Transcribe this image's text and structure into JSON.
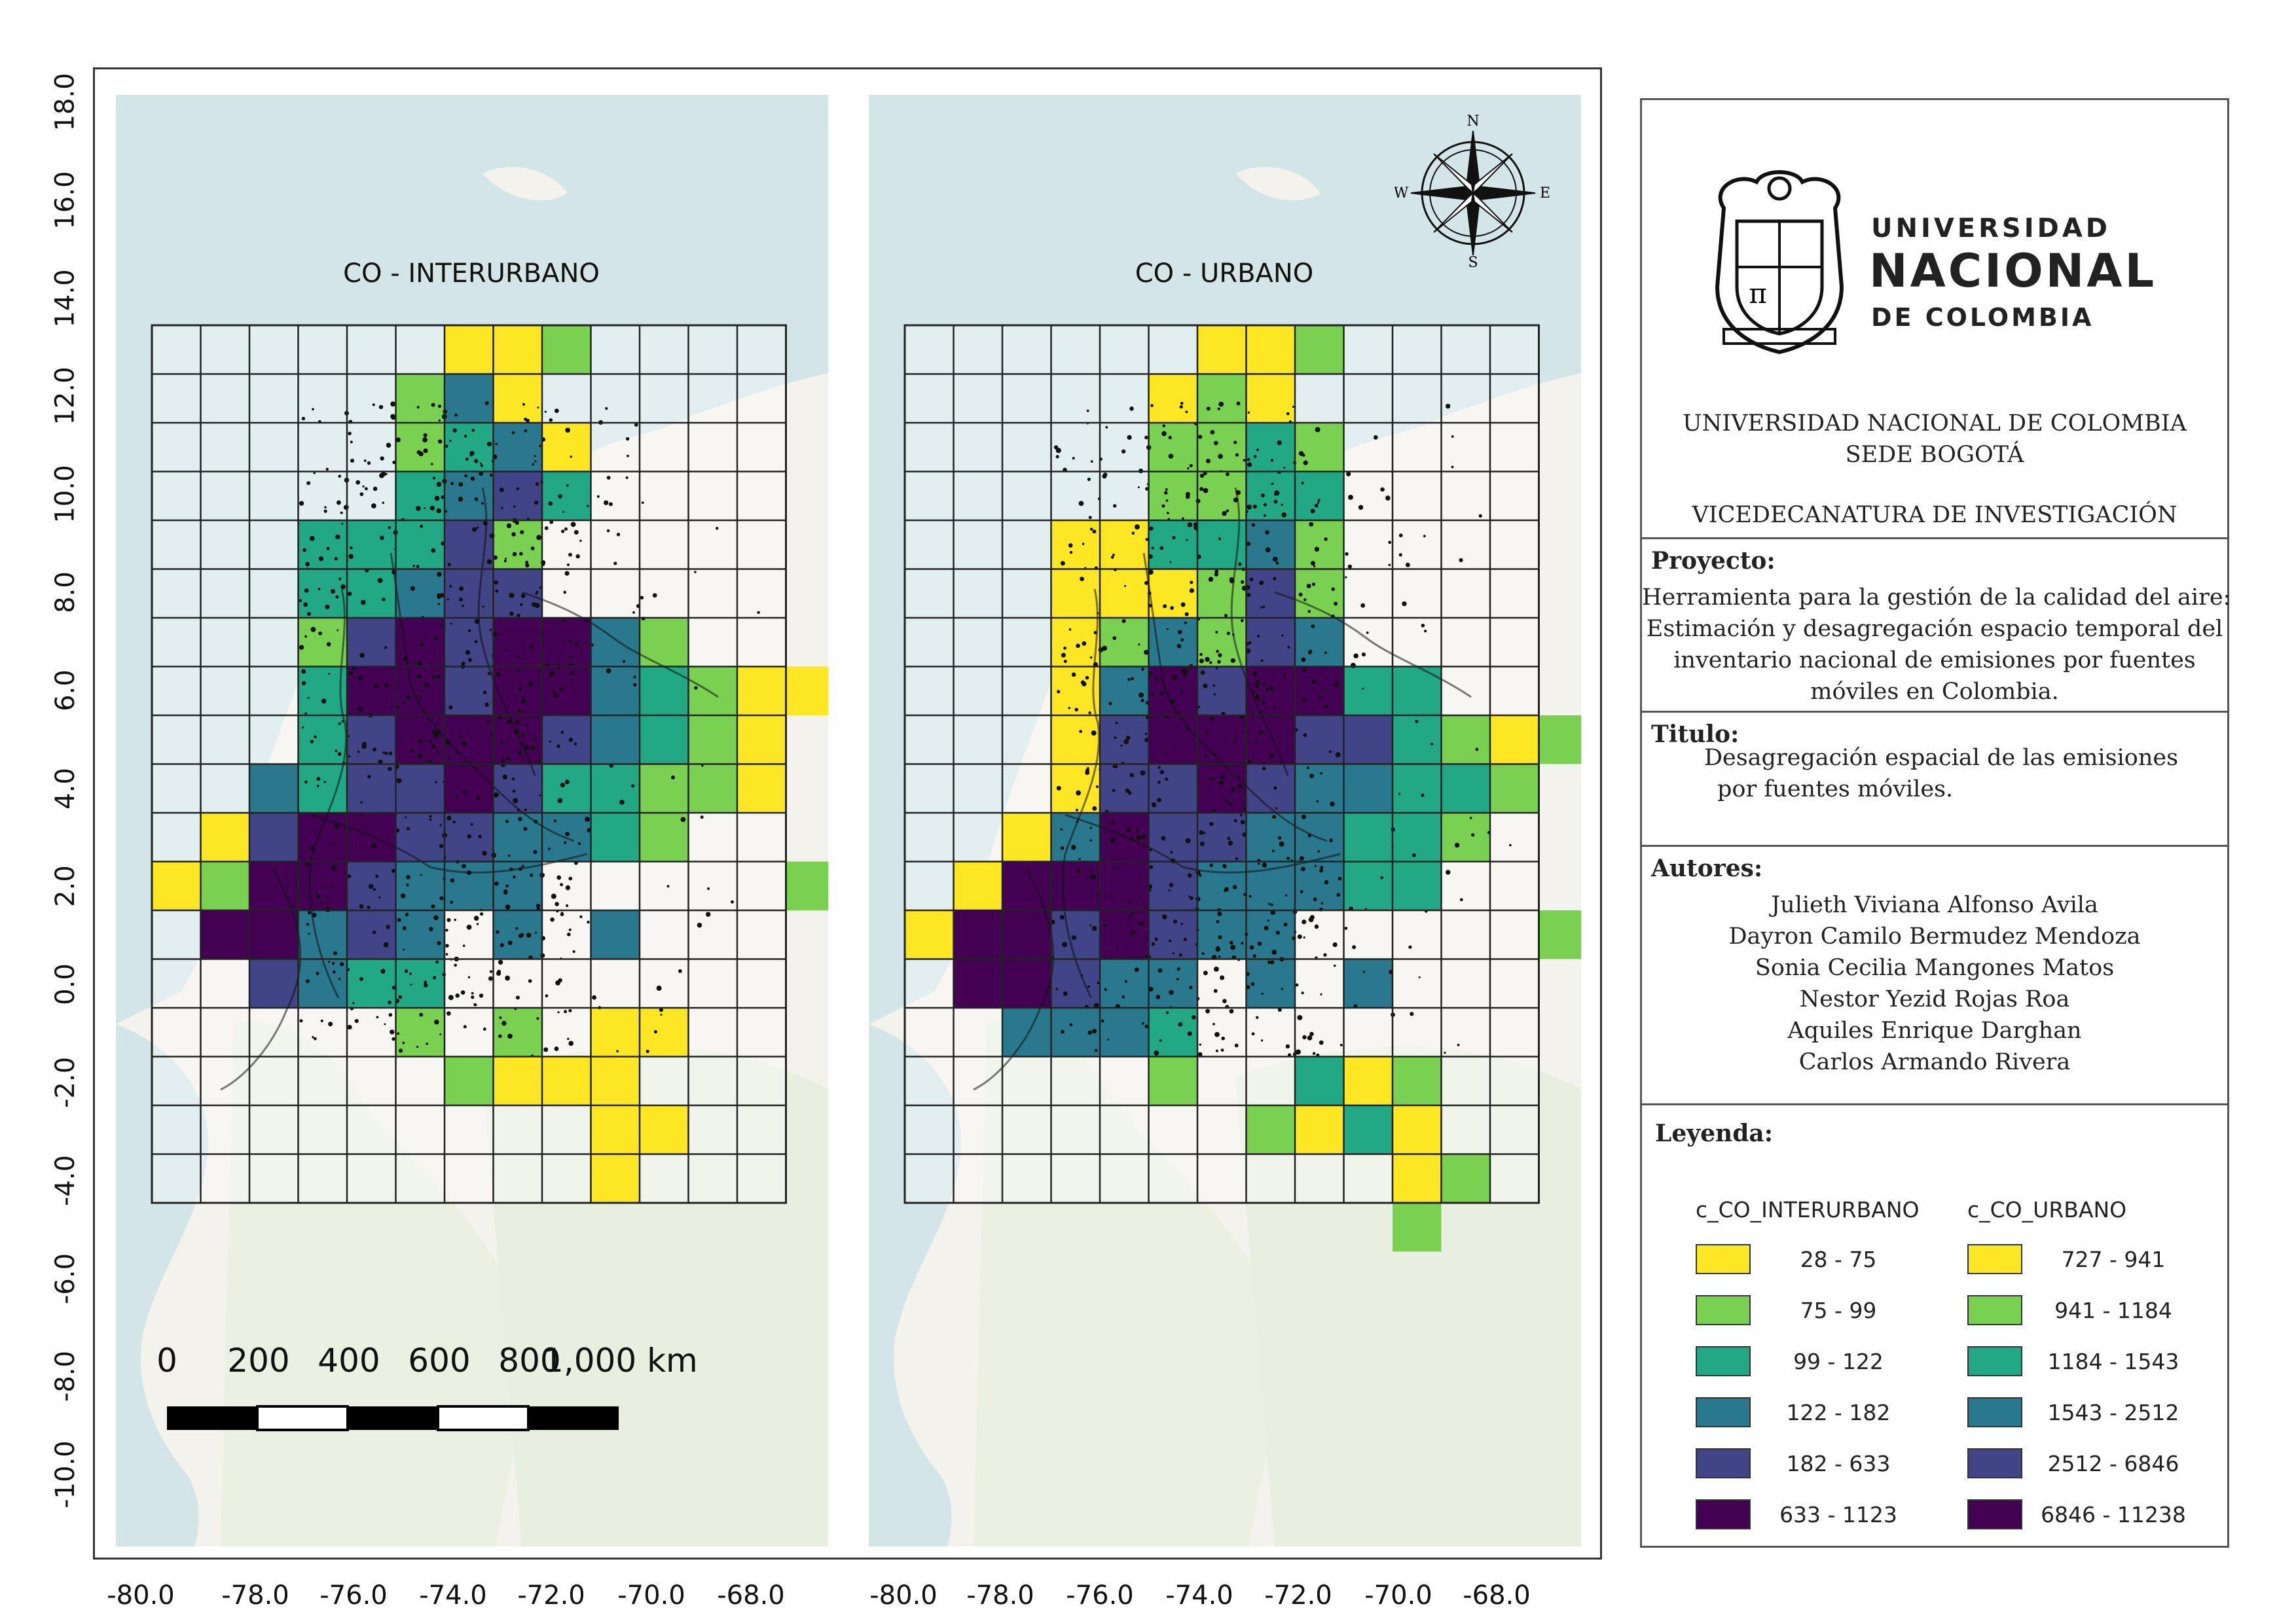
{
  "maps": [
    {
      "id": "interurbano",
      "title": "CO - INTERURBANO",
      "cells": [
        [
          0,
          6,
          0
        ],
        [
          0,
          7,
          0
        ],
        [
          0,
          8,
          1
        ],
        [
          1,
          5,
          1
        ],
        [
          1,
          6,
          3
        ],
        [
          1,
          7,
          0
        ],
        [
          2,
          5,
          1
        ],
        [
          2,
          6,
          2
        ],
        [
          2,
          7,
          3
        ],
        [
          2,
          8,
          0
        ],
        [
          3,
          5,
          2
        ],
        [
          3,
          6,
          3
        ],
        [
          3,
          7,
          4
        ],
        [
          3,
          8,
          2
        ],
        [
          4,
          3,
          2
        ],
        [
          4,
          4,
          2
        ],
        [
          4,
          5,
          2
        ],
        [
          4,
          6,
          4
        ],
        [
          4,
          7,
          1
        ],
        [
          5,
          3,
          2
        ],
        [
          5,
          4,
          2
        ],
        [
          5,
          5,
          3
        ],
        [
          5,
          6,
          4
        ],
        [
          5,
          7,
          4
        ],
        [
          6,
          3,
          1
        ],
        [
          6,
          4,
          4
        ],
        [
          6,
          5,
          5
        ],
        [
          6,
          6,
          4
        ],
        [
          6,
          7,
          5
        ],
        [
          6,
          8,
          5
        ],
        [
          6,
          9,
          3
        ],
        [
          6,
          10,
          1
        ],
        [
          7,
          3,
          2
        ],
        [
          7,
          4,
          5
        ],
        [
          7,
          5,
          5
        ],
        [
          7,
          6,
          4
        ],
        [
          7,
          7,
          5
        ],
        [
          7,
          8,
          5
        ],
        [
          7,
          9,
          3
        ],
        [
          7,
          10,
          2
        ],
        [
          7,
          11,
          1
        ],
        [
          7,
          12,
          0
        ],
        [
          7,
          13,
          0
        ],
        [
          8,
          3,
          2
        ],
        [
          8,
          4,
          4
        ],
        [
          8,
          5,
          5
        ],
        [
          8,
          6,
          5
        ],
        [
          8,
          7,
          5
        ],
        [
          8,
          8,
          4
        ],
        [
          8,
          9,
          3
        ],
        [
          8,
          10,
          2
        ],
        [
          8,
          11,
          1
        ],
        [
          8,
          12,
          0
        ],
        [
          9,
          2,
          3
        ],
        [
          9,
          3,
          2
        ],
        [
          9,
          4,
          4
        ],
        [
          9,
          5,
          4
        ],
        [
          9,
          6,
          5
        ],
        [
          9,
          7,
          4
        ],
        [
          9,
          8,
          2
        ],
        [
          9,
          9,
          2
        ],
        [
          9,
          10,
          1
        ],
        [
          9,
          11,
          1
        ],
        [
          9,
          12,
          0
        ],
        [
          10,
          1,
          0
        ],
        [
          10,
          2,
          4
        ],
        [
          10,
          3,
          5
        ],
        [
          10,
          4,
          5
        ],
        [
          10,
          5,
          4
        ],
        [
          10,
          6,
          4
        ],
        [
          10,
          7,
          3
        ],
        [
          10,
          8,
          3
        ],
        [
          10,
          9,
          2
        ],
        [
          10,
          10,
          1
        ],
        [
          11,
          0,
          0
        ],
        [
          11,
          1,
          1
        ],
        [
          11,
          2,
          5
        ],
        [
          11,
          3,
          5
        ],
        [
          11,
          4,
          4
        ],
        [
          11,
          5,
          3
        ],
        [
          11,
          6,
          3
        ],
        [
          11,
          7,
          3
        ],
        [
          11,
          13,
          1
        ],
        [
          12,
          1,
          5
        ],
        [
          12,
          2,
          5
        ],
        [
          12,
          3,
          3
        ],
        [
          12,
          4,
          4
        ],
        [
          12,
          5,
          3
        ],
        [
          12,
          7,
          3
        ],
        [
          12,
          9,
          3
        ],
        [
          13,
          2,
          4
        ],
        [
          13,
          3,
          3
        ],
        [
          13,
          4,
          2
        ],
        [
          13,
          5,
          2
        ],
        [
          14,
          5,
          1
        ],
        [
          14,
          7,
          1
        ],
        [
          14,
          9,
          0
        ],
        [
          14,
          10,
          0
        ],
        [
          15,
          6,
          1
        ],
        [
          15,
          7,
          0
        ],
        [
          15,
          8,
          0
        ],
        [
          15,
          9,
          0
        ],
        [
          16,
          9,
          0
        ],
        [
          16,
          10,
          0
        ],
        [
          17,
          9,
          0
        ]
      ]
    },
    {
      "id": "urbano",
      "title": "CO - URBANO",
      "cells": [
        [
          0,
          6,
          0
        ],
        [
          0,
          7,
          0
        ],
        [
          0,
          8,
          1
        ],
        [
          1,
          5,
          0
        ],
        [
          1,
          6,
          1
        ],
        [
          1,
          7,
          0
        ],
        [
          2,
          5,
          1
        ],
        [
          2,
          6,
          1
        ],
        [
          2,
          7,
          2
        ],
        [
          2,
          8,
          1
        ],
        [
          3,
          5,
          1
        ],
        [
          3,
          6,
          1
        ],
        [
          3,
          7,
          2
        ],
        [
          3,
          8,
          2
        ],
        [
          4,
          3,
          0
        ],
        [
          4,
          4,
          0
        ],
        [
          4,
          5,
          2
        ],
        [
          4,
          6,
          2
        ],
        [
          4,
          7,
          3
        ],
        [
          4,
          8,
          1
        ],
        [
          5,
          3,
          0
        ],
        [
          5,
          4,
          0
        ],
        [
          5,
          5,
          0
        ],
        [
          5,
          6,
          1
        ],
        [
          5,
          7,
          4
        ],
        [
          5,
          8,
          1
        ],
        [
          6,
          3,
          0
        ],
        [
          6,
          4,
          1
        ],
        [
          6,
          5,
          3
        ],
        [
          6,
          6,
          1
        ],
        [
          6,
          7,
          4
        ],
        [
          6,
          8,
          3
        ],
        [
          7,
          3,
          0
        ],
        [
          7,
          4,
          3
        ],
        [
          7,
          5,
          5
        ],
        [
          7,
          6,
          4
        ],
        [
          7,
          7,
          5
        ],
        [
          7,
          8,
          5
        ],
        [
          7,
          9,
          2
        ],
        [
          7,
          10,
          2
        ],
        [
          8,
          3,
          0
        ],
        [
          8,
          4,
          4
        ],
        [
          8,
          5,
          5
        ],
        [
          8,
          6,
          5
        ],
        [
          8,
          7,
          5
        ],
        [
          8,
          8,
          4
        ],
        [
          8,
          9,
          4
        ],
        [
          8,
          10,
          2
        ],
        [
          8,
          11,
          1
        ],
        [
          8,
          12,
          0
        ],
        [
          8,
          13,
          1
        ],
        [
          9,
          3,
          0
        ],
        [
          9,
          4,
          4
        ],
        [
          9,
          5,
          4
        ],
        [
          9,
          6,
          5
        ],
        [
          9,
          7,
          4
        ],
        [
          9,
          8,
          3
        ],
        [
          9,
          9,
          3
        ],
        [
          9,
          10,
          2
        ],
        [
          9,
          11,
          2
        ],
        [
          9,
          12,
          1
        ],
        [
          10,
          2,
          0
        ],
        [
          10,
          3,
          3
        ],
        [
          10,
          4,
          5
        ],
        [
          10,
          5,
          4
        ],
        [
          10,
          6,
          4
        ],
        [
          10,
          7,
          3
        ],
        [
          10,
          8,
          3
        ],
        [
          10,
          9,
          2
        ],
        [
          10,
          10,
          2
        ],
        [
          10,
          11,
          1
        ],
        [
          11,
          1,
          0
        ],
        [
          11,
          2,
          5
        ],
        [
          11,
          3,
          5
        ],
        [
          11,
          4,
          5
        ],
        [
          11,
          5,
          4
        ],
        [
          11,
          6,
          3
        ],
        [
          11,
          7,
          3
        ],
        [
          11,
          8,
          3
        ],
        [
          11,
          9,
          2
        ],
        [
          11,
          10,
          2
        ],
        [
          12,
          0,
          0
        ],
        [
          12,
          1,
          5
        ],
        [
          12,
          2,
          5
        ],
        [
          12,
          3,
          4
        ],
        [
          12,
          4,
          5
        ],
        [
          12,
          5,
          4
        ],
        [
          12,
          6,
          3
        ],
        [
          12,
          7,
          3
        ],
        [
          12,
          13,
          1
        ],
        [
          13,
          1,
          5
        ],
        [
          13,
          2,
          5
        ],
        [
          13,
          3,
          4
        ],
        [
          13,
          4,
          3
        ],
        [
          13,
          5,
          3
        ],
        [
          13,
          7,
          3
        ],
        [
          13,
          9,
          3
        ],
        [
          14,
          2,
          3
        ],
        [
          14,
          3,
          3
        ],
        [
          14,
          4,
          3
        ],
        [
          14,
          5,
          2
        ],
        [
          15,
          5,
          1
        ],
        [
          15,
          8,
          2
        ],
        [
          15,
          9,
          0
        ],
        [
          15,
          10,
          1
        ],
        [
          16,
          7,
          1
        ],
        [
          16,
          8,
          0
        ],
        [
          16,
          9,
          2
        ],
        [
          16,
          10,
          0
        ],
        [
          17,
          10,
          0
        ],
        [
          17,
          11,
          1
        ],
        [
          18,
          10,
          1
        ]
      ]
    }
  ],
  "axes": {
    "y_ticks": [
      "18.0",
      "16.0",
      "14.0",
      "12.0",
      "10.0",
      "8.0",
      "6.0",
      "4.0",
      "2.0",
      "0.0",
      "-2.0",
      "-4.0",
      "-6.0",
      "-8.0",
      "-10.0"
    ],
    "x_ticks": [
      "-80.0",
      "-78.0",
      "-76.0",
      "-74.0",
      "-72.0",
      "-70.0",
      "-68.0"
    ]
  },
  "compass": {
    "n": "N",
    "s": "S",
    "e": "E",
    "w": "W"
  },
  "scalebar": {
    "labels": [
      "0",
      "200",
      "400",
      "600",
      "800",
      "1,000 km"
    ]
  },
  "info": {
    "university": {
      "line1": "UNIVERSIDAD",
      "line2": "NACIONAL",
      "line3": "DE COLOMBIA"
    },
    "institution": [
      "UNIVERSIDAD NACIONAL DE COLOMBIA",
      "SEDE BOGOTÁ"
    ],
    "office": "VICEDECANATURA DE INVESTIGACIÓN",
    "project_heading": "Proyecto:",
    "project_lines": [
      "Herramienta para la gestión de la calidad del aire:",
      "Estimación y desagregación espacio temporal del",
      "inventario nacional de emisiones por fuentes",
      "móviles en Colombia."
    ],
    "title_heading": "Titulo:",
    "title_lines": [
      "Desagregación espacial de las emisiones",
      "por fuentes móviles."
    ],
    "authors_heading": "Autores:",
    "authors": [
      "Julieth Viviana Alfonso Avila",
      "Dayron Camilo Bermudez Mendoza",
      "Sonia Cecilia Mangones Matos",
      "Nestor Yezid Rojas Roa",
      "Aquiles Enrique Darghan",
      "Carlos Armando Rivera"
    ],
    "legend_heading": "Leyenda:"
  },
  "legend": {
    "col1_title": "c_CO_INTERURBANO",
    "col2_title": "c_CO_URBANO",
    "colors": [
      "#fde725",
      "#7ad151",
      "#22a884",
      "#2a788e",
      "#414487",
      "#440154"
    ],
    "col1": [
      "28 - 75",
      "75 - 99",
      "99 - 122",
      "122 - 182",
      "182 - 633",
      "633 - 1123"
    ],
    "col2": [
      "727 - 941",
      "941 - 1184",
      "1184 - 1543",
      "1543 - 2512",
      "2512 - 6846",
      "6846 - 11238"
    ]
  }
}
